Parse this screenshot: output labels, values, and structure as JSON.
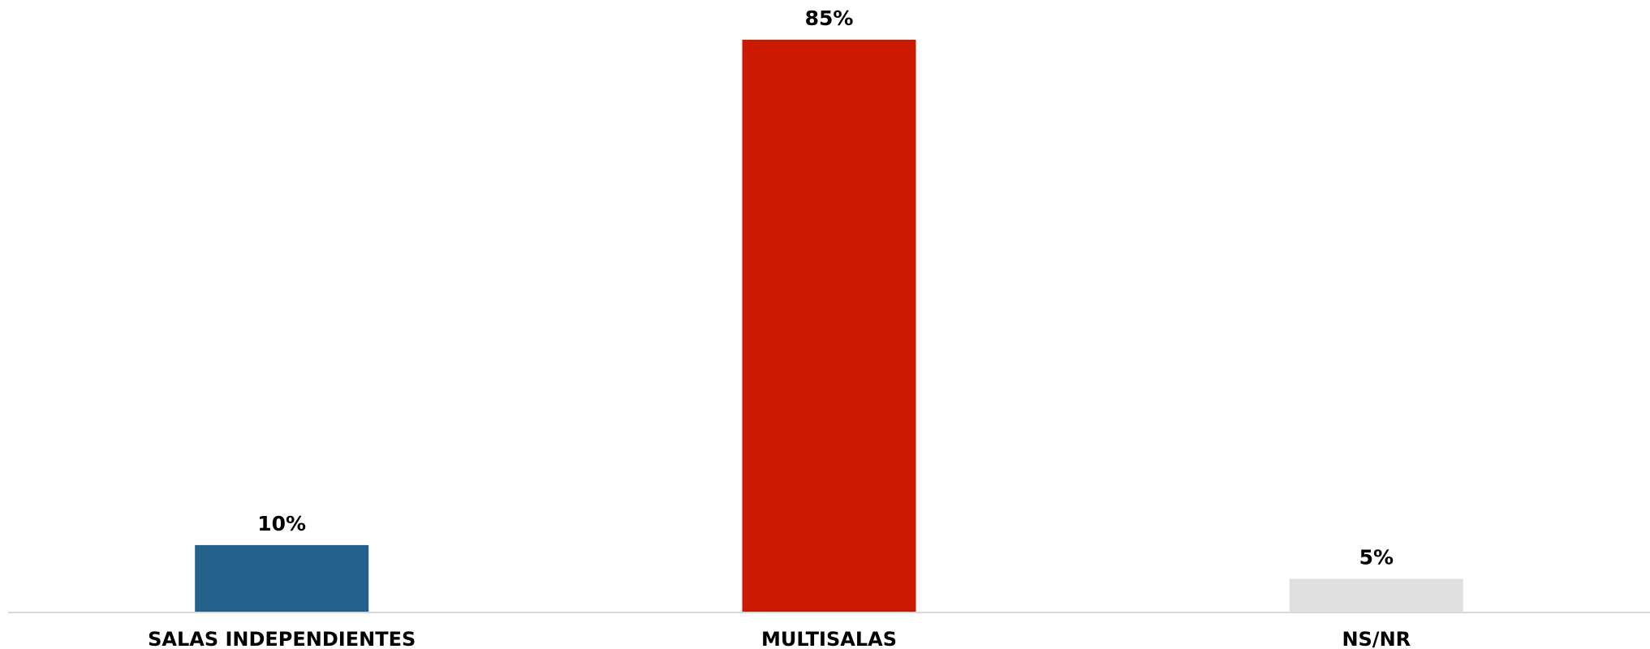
{
  "chart_data": {
    "type": "bar",
    "title": "",
    "xlabel": "",
    "ylabel": "",
    "ylim": [
      0,
      85
    ],
    "grid": false,
    "legend": "none",
    "categories": [
      "SALAS INDEPENDIENTES",
      "MULTISALAS",
      "NS/NR"
    ],
    "values": [
      10,
      85,
      5
    ],
    "value_labels": [
      "10%",
      "85%",
      "5%"
    ],
    "colors": [
      "#24628c",
      "#cc1a00",
      "#e0e0e0"
    ],
    "baseline_color": "#d9d9d9"
  }
}
